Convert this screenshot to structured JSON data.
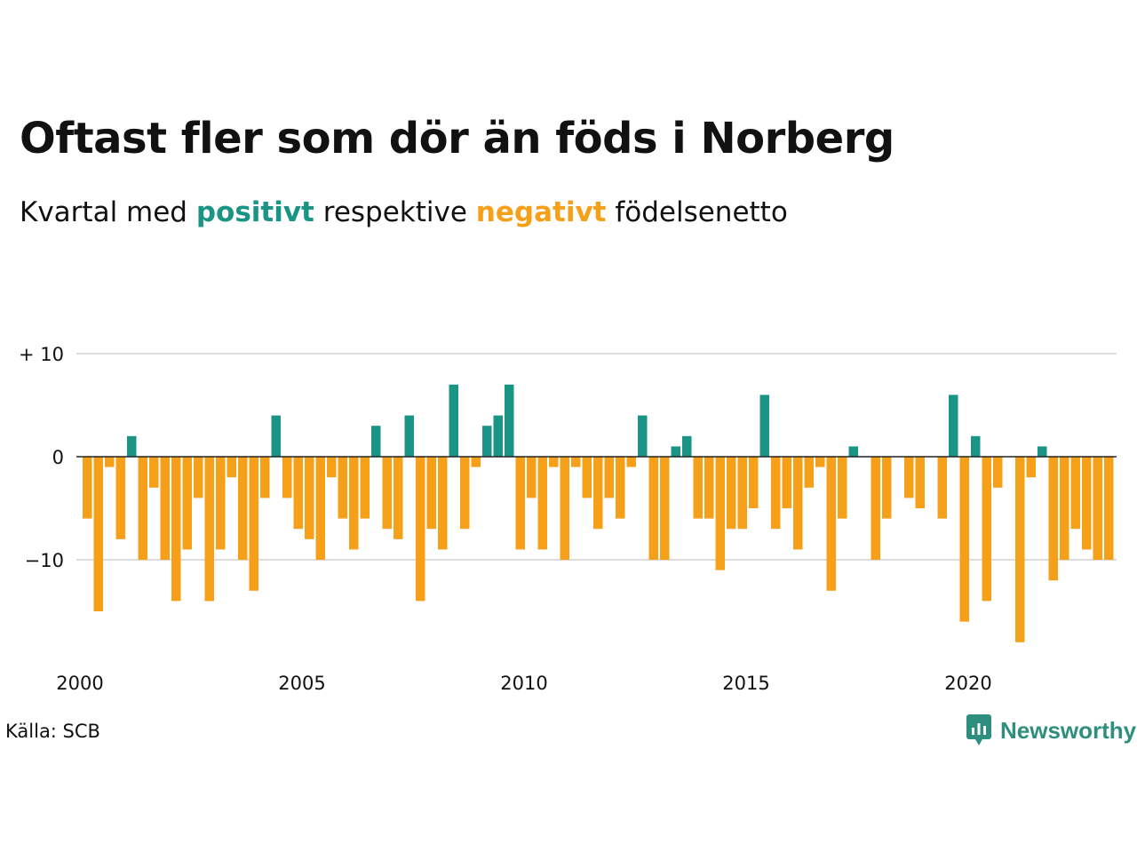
{
  "title": "Oftast fler som dör än föds i Norberg",
  "subtitle": {
    "prefix": "Kvartal med",
    "positive": "positivt",
    "middle": "respektive",
    "negative": "negativt",
    "suffix": "födelsenetto"
  },
  "source": "Källa: SCB",
  "brand": {
    "name": "Newsworthy",
    "icon": "newsworthy-logo-icon"
  },
  "colors": {
    "positive": "#1a9585",
    "negative": "#f6a01a",
    "gridline": "#dddddd",
    "zeroline": "#222222",
    "brand": "#2e8f7e"
  },
  "chart_data": {
    "type": "bar",
    "title": "Oftast fler som dör än föds i Norberg",
    "subtitle": "Kvartal med positivt respektive negativt födelsenetto",
    "xlabel": "",
    "ylabel": "",
    "series": [
      {
        "x_start": "2000 Q1",
        "values": [
          -6,
          -15,
          -1,
          -8,
          2,
          -10,
          -3,
          -10,
          -14,
          -9,
          -4,
          -14,
          -9,
          -2,
          -10,
          -13,
          -4,
          4,
          -4,
          -7,
          -8,
          -10,
          -2,
          -6,
          -9,
          -6,
          3,
          -7,
          -8,
          4,
          -14,
          -7,
          -9,
          7,
          -7,
          -1,
          3,
          4,
          7,
          -9,
          -4,
          -9,
          -1,
          -10,
          -1,
          -4,
          -7,
          -4,
          -6,
          -1,
          4,
          -10,
          -10,
          1,
          2,
          -6,
          -6,
          -11,
          -7,
          -7,
          -5,
          6,
          -7,
          -5,
          -9,
          -3,
          -1,
          -13,
          -6,
          1,
          0,
          -10,
          -6,
          0,
          -4,
          -5,
          0,
          -6,
          6,
          -16,
          2,
          -14,
          -3,
          0,
          -18,
          -2,
          1,
          -12,
          -10,
          -7,
          -9,
          -10,
          -10
        ]
      }
    ],
    "x_ticks": [
      "2000",
      "2005",
      "2010",
      "2015",
      "2020"
    ],
    "y_ticks": [
      {
        "value": 10,
        "label": "+ 10"
      },
      {
        "value": 0,
        "label": "0"
      },
      {
        "value": -10,
        "label": "−10"
      }
    ],
    "ylim": [
      -19,
      10
    ],
    "grid": true,
    "legend": "none"
  }
}
